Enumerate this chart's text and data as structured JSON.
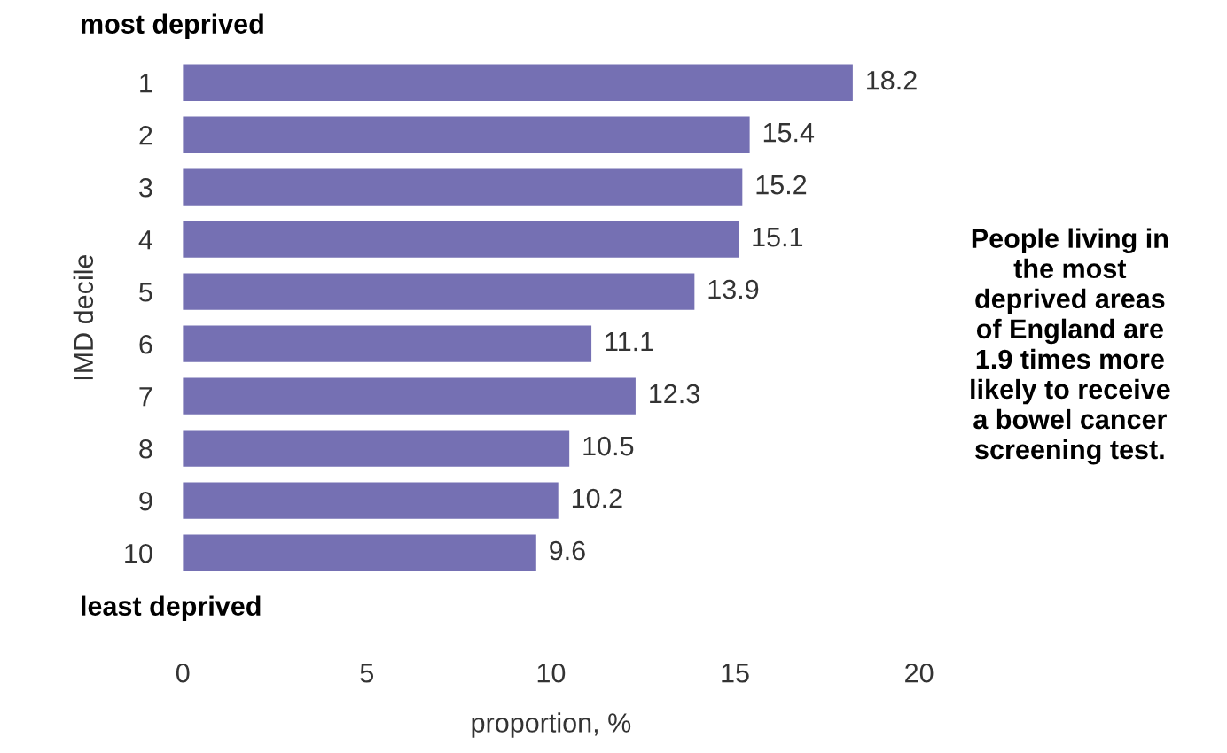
{
  "chart_data": {
    "type": "bar",
    "orientation": "horizontal",
    "categories": [
      "1",
      "2",
      "3",
      "4",
      "5",
      "6",
      "7",
      "8",
      "9",
      "10"
    ],
    "values": [
      18.2,
      15.4,
      15.2,
      15.1,
      13.9,
      11.1,
      12.3,
      10.5,
      10.2,
      9.6
    ],
    "color": "#7570b3",
    "xlim": [
      0,
      20
    ],
    "xticks": [
      0,
      5,
      10,
      15,
      20
    ],
    "xlabel": "proportion, %",
    "ylabel": "IMD decile",
    "data_labels": true,
    "grid": false,
    "legend": false,
    "annotations": [
      "most deprived",
      "least deprived",
      "People living in\nthe most\ndeprived areas\nof England are\n1.9 times more\nlikely to receive\na bowel cancer\nscreening test."
    ]
  }
}
